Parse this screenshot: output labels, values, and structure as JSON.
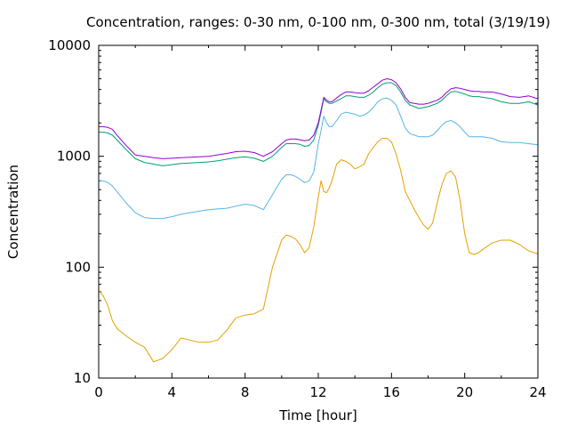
{
  "chart_data": {
    "type": "line",
    "title": "Concentration, ranges: 0-30 nm, 0-100 nm, 0-300 nm, total (3/19/19)",
    "xlabel": "Time [hour]",
    "ylabel": "Concentration",
    "xlim": [
      0,
      24
    ],
    "ylim": [
      10,
      10000
    ],
    "yscale": "log",
    "grid": false,
    "legend": "none",
    "xticks": [
      "0",
      "4",
      "8",
      "12",
      "16",
      "20",
      "24"
    ],
    "yticks": [
      "10",
      "100",
      "1000",
      "10000"
    ],
    "x": [
      0,
      0.25,
      0.5,
      0.75,
      1,
      1.5,
      2,
      2.5,
      3,
      3.5,
      4,
      4.5,
      5,
      5.5,
      6,
      6.5,
      7,
      7.5,
      8,
      8.5,
      9,
      9.5,
      10,
      10.25,
      10.5,
      10.75,
      11,
      11.25,
      11.5,
      11.75,
      12,
      12.15,
      12.3,
      12.45,
      12.6,
      12.75,
      13,
      13.25,
      13.5,
      13.75,
      14,
      14.25,
      14.5,
      14.75,
      15,
      15.25,
      15.5,
      15.75,
      16,
      16.25,
      16.5,
      16.75,
      17,
      17.25,
      17.5,
      17.75,
      18,
      18.25,
      18.5,
      18.75,
      19,
      19.25,
      19.5,
      19.75,
      20,
      20.25,
      20.5,
      20.75,
      21,
      21.5,
      22,
      22.5,
      23,
      23.5,
      24
    ],
    "series": [
      {
        "color": "#e69f00",
        "values": [
          62,
          55,
          45,
          33,
          28,
          24,
          21,
          19,
          14,
          15,
          18,
          23,
          22,
          21,
          21,
          22,
          27,
          35,
          37,
          38,
          42,
          100,
          175,
          195,
          190,
          180,
          160,
          135,
          150,
          230,
          430,
          600,
          480,
          470,
          520,
          600,
          850,
          930,
          900,
          850,
          770,
          800,
          850,
          1050,
          1200,
          1350,
          1450,
          1450,
          1350,
          1050,
          750,
          480,
          400,
          330,
          280,
          240,
          220,
          250,
          380,
          550,
          700,
          740,
          650,
          400,
          200,
          135,
          130,
          135,
          145,
          165,
          175,
          175,
          160,
          140,
          132
        ]
      },
      {
        "color": "#56b4e9",
        "values": [
          600,
          600,
          580,
          540,
          480,
          380,
          310,
          280,
          275,
          275,
          285,
          300,
          310,
          320,
          330,
          335,
          340,
          355,
          370,
          360,
          330,
          450,
          620,
          680,
          680,
          660,
          620,
          580,
          600,
          720,
          1300,
          1700,
          2300,
          2000,
          1850,
          1850,
          2100,
          2400,
          2500,
          2450,
          2400,
          2300,
          2350,
          2500,
          2750,
          3100,
          3300,
          3350,
          3200,
          2900,
          2300,
          1800,
          1600,
          1550,
          1500,
          1500,
          1500,
          1550,
          1700,
          1900,
          2050,
          2100,
          2000,
          1850,
          1650,
          1500,
          1500,
          1500,
          1500,
          1450,
          1350,
          1330,
          1330,
          1300,
          1270
        ]
      },
      {
        "color": "#009e73",
        "values": [
          1650,
          1650,
          1620,
          1550,
          1400,
          1150,
          950,
          880,
          850,
          820,
          840,
          860,
          870,
          880,
          890,
          910,
          940,
          970,
          990,
          960,
          900,
          1000,
          1200,
          1300,
          1300,
          1300,
          1280,
          1230,
          1250,
          1400,
          1900,
          2500,
          3300,
          3100,
          3000,
          3000,
          3150,
          3300,
          3500,
          3500,
          3450,
          3400,
          3400,
          3550,
          3800,
          4150,
          4450,
          4600,
          4600,
          4350,
          3800,
          3200,
          2900,
          2800,
          2700,
          2750,
          2800,
          2900,
          3000,
          3200,
          3500,
          3800,
          3850,
          3750,
          3650,
          3500,
          3450,
          3450,
          3400,
          3300,
          3100,
          3000,
          3000,
          3100,
          2900
        ]
      },
      {
        "color": "#9400d3",
        "values": [
          1850,
          1850,
          1820,
          1750,
          1550,
          1250,
          1030,
          1000,
          970,
          950,
          960,
          970,
          980,
          990,
          1000,
          1030,
          1060,
          1100,
          1110,
          1080,
          1000,
          1100,
          1300,
          1400,
          1430,
          1430,
          1410,
          1380,
          1400,
          1550,
          2000,
          2600,
          3400,
          3200,
          3100,
          3100,
          3350,
          3600,
          3800,
          3800,
          3750,
          3700,
          3700,
          3900,
          4200,
          4500,
          4850,
          5000,
          4900,
          4600,
          4050,
          3400,
          3050,
          3000,
          2950,
          2950,
          3000,
          3100,
          3200,
          3400,
          3750,
          4050,
          4150,
          4100,
          4000,
          3900,
          3850,
          3850,
          3800,
          3800,
          3650,
          3450,
          3400,
          3500,
          3300
        ]
      }
    ]
  }
}
